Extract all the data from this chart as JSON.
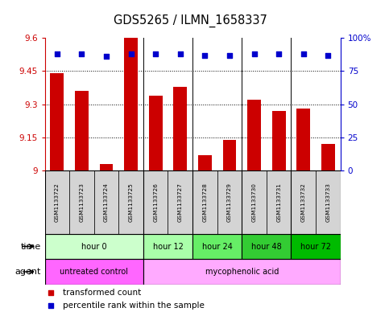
{
  "title": "GDS5265 / ILMN_1658337",
  "samples": [
    "GSM1133722",
    "GSM1133723",
    "GSM1133724",
    "GSM1133725",
    "GSM1133726",
    "GSM1133727",
    "GSM1133728",
    "GSM1133729",
    "GSM1133730",
    "GSM1133731",
    "GSM1133732",
    "GSM1133733"
  ],
  "bar_values": [
    9.44,
    9.36,
    9.03,
    9.6,
    9.34,
    9.38,
    9.07,
    9.14,
    9.32,
    9.27,
    9.28,
    9.12
  ],
  "percentile_values": [
    88,
    88,
    86,
    88,
    88,
    88,
    87,
    87,
    88,
    88,
    88,
    87
  ],
  "bar_color": "#cc0000",
  "percentile_color": "#0000cc",
  "ylim_left": [
    9.0,
    9.6
  ],
  "ylim_right": [
    0,
    100
  ],
  "yticks_left": [
    9.0,
    9.15,
    9.3,
    9.45,
    9.6
  ],
  "yticks_right": [
    0,
    25,
    50,
    75,
    100
  ],
  "ytick_labels_left": [
    "9",
    "9.15",
    "9.3",
    "9.45",
    "9.6"
  ],
  "ytick_labels_right": [
    "0",
    "25",
    "50",
    "75",
    "100%"
  ],
  "hlines": [
    9.15,
    9.3,
    9.45
  ],
  "time_groups": [
    {
      "label": "hour 0",
      "start": 0,
      "end": 3,
      "color": "#ccffcc"
    },
    {
      "label": "hour 12",
      "start": 4,
      "end": 5,
      "color": "#aaffaa"
    },
    {
      "label": "hour 24",
      "start": 6,
      "end": 7,
      "color": "#66ee66"
    },
    {
      "label": "hour 48",
      "start": 8,
      "end": 9,
      "color": "#33cc33"
    },
    {
      "label": "hour 72",
      "start": 10,
      "end": 11,
      "color": "#00bb00"
    }
  ],
  "agent_groups": [
    {
      "label": "untreated control",
      "start": 0,
      "end": 3,
      "color": "#ff66ff"
    },
    {
      "label": "mycophenolic acid",
      "start": 4,
      "end": 11,
      "color": "#ffaaff"
    }
  ],
  "group_dividers": [
    3.5,
    5.5,
    7.5,
    9.5
  ],
  "time_label": "time",
  "agent_label": "agent",
  "legend_bar_label": "transformed count",
  "legend_pct_label": "percentile rank within the sample",
  "bar_color_left": "#cc0000",
  "tick_color_right": "#0000cc",
  "bg_color": "#ffffff",
  "n_samples": 12
}
